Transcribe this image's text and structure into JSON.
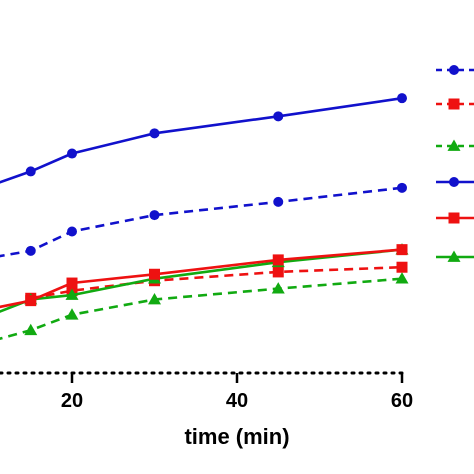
{
  "chart_data": {
    "type": "line",
    "xlabel": "time (min)",
    "x_ticks": [
      20,
      40,
      60
    ],
    "xlim": [
      0,
      60
    ],
    "ylim": [
      0,
      100
    ],
    "grid": false,
    "legend": "right",
    "series": [
      {
        "color": "#1111cc",
        "dash": "solid",
        "marker": "circle",
        "x": [
          15,
          20,
          30,
          45,
          60
        ],
        "y": [
          68.8,
          74.9,
          81.8,
          87.6,
          93.8
        ]
      },
      {
        "color": "#1111cc",
        "dash": "dashed",
        "marker": "circle",
        "x": [
          15,
          20,
          30,
          45,
          60
        ],
        "y": [
          41.7,
          48.3,
          53.9,
          58.4,
          63.2
        ]
      },
      {
        "color": "#ee1111",
        "dash": "solid",
        "marker": "square",
        "x": [
          15,
          20,
          30,
          45,
          60
        ],
        "y": [
          24.7,
          30.7,
          33.7,
          38.6,
          42.1
        ]
      },
      {
        "color": "#ee1111",
        "dash": "dashed",
        "marker": "square",
        "x": [
          15,
          20,
          30,
          45,
          60
        ],
        "y": [
          25.5,
          28.1,
          31.5,
          34.5,
          36.1
        ]
      },
      {
        "color": "#11aa11",
        "dash": "solid",
        "marker": "triangle",
        "x": [
          15,
          20,
          30,
          45,
          60
        ],
        "y": [
          25.1,
          26.6,
          32.2,
          37.8,
          42.1
        ]
      },
      {
        "color": "#11aa11",
        "dash": "dashed",
        "marker": "triangle",
        "x": [
          15,
          20,
          30,
          45,
          60
        ],
        "y": [
          14.6,
          19.9,
          25.1,
          28.8,
          32.2
        ]
      }
    ],
    "leading_segments": [
      {
        "series": 0,
        "x": 0,
        "y": 53.9
      },
      {
        "series": 1,
        "x": 0,
        "y": 34.5
      },
      {
        "series": 2,
        "x": 0,
        "y": 16.1
      },
      {
        "series": 4,
        "x": 0,
        "y": 8.6
      },
      {
        "series": 5,
        "x": 0,
        "y": 3.0
      }
    ]
  }
}
